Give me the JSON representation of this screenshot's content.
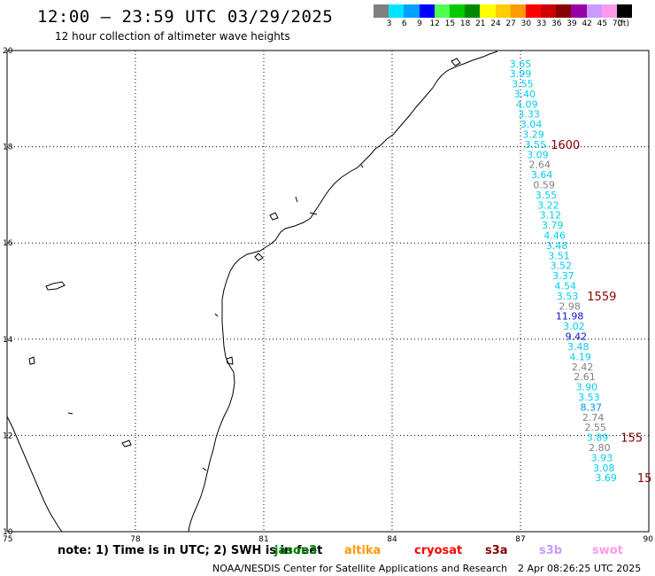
{
  "header": {
    "title": "12:00 – 23:59 UTC 03/29/2025",
    "subtitle": "12 hour collection of altimeter wave heights"
  },
  "colorbar": {
    "unit": "(ft)",
    "cells": [
      {
        "color": "#808080",
        "label": "3"
      },
      {
        "color": "#00e5ff",
        "label": "6"
      },
      {
        "color": "#00a0ff",
        "label": "9"
      },
      {
        "color": "#0000ff",
        "label": "12"
      },
      {
        "color": "#50ff50",
        "label": "15"
      },
      {
        "color": "#00cc00",
        "label": "18"
      },
      {
        "color": "#008800",
        "label": "21"
      },
      {
        "color": "#ffff00",
        "label": "24"
      },
      {
        "color": "#ffcc00",
        "label": "27"
      },
      {
        "color": "#ff9900",
        "label": "30"
      },
      {
        "color": "#ff0000",
        "label": "33"
      },
      {
        "color": "#cc0000",
        "label": "36"
      },
      {
        "color": "#880000",
        "label": "39"
      },
      {
        "color": "#9900aa",
        "label": "42"
      },
      {
        "color": "#cc99ff",
        "label": "45"
      },
      {
        "color": "#ff99ee",
        "label": "70"
      },
      {
        "color": "#000000",
        "label": ""
      }
    ]
  },
  "axes": {
    "lon_labels": [
      "75",
      "78",
      "81",
      "84",
      "87",
      "90"
    ],
    "lat_labels": [
      "20",
      "18",
      "16",
      "14",
      "12",
      "10"
    ]
  },
  "measurements": [
    {
      "value": "3.65",
      "lon": 87.0,
      "lat": 19.72,
      "color": "#00ccee"
    },
    {
      "value": "3.99",
      "lon": 87.0,
      "lat": 19.52,
      "color": "#00ccee"
    },
    {
      "value": "3.55",
      "lon": 87.05,
      "lat": 19.31,
      "color": "#00ccee"
    },
    {
      "value": "3.40",
      "lon": 87.1,
      "lat": 19.1,
      "color": "#00ccee"
    },
    {
      "value": "4.09",
      "lon": 87.15,
      "lat": 18.89,
      "color": "#00ccee"
    },
    {
      "value": "3.33",
      "lon": 87.2,
      "lat": 18.68,
      "color": "#00ccee"
    },
    {
      "value": "3.04",
      "lon": 87.25,
      "lat": 18.47,
      "color": "#00ccee"
    },
    {
      "value": "3.29",
      "lon": 87.3,
      "lat": 18.26,
      "color": "#00ccee"
    },
    {
      "value": "3.55",
      "lon": 87.35,
      "lat": 18.05,
      "color": "#00ccee"
    },
    {
      "value": "3.09",
      "lon": 87.4,
      "lat": 17.84,
      "color": "#00ccee"
    },
    {
      "value": "2.64",
      "lon": 87.45,
      "lat": 17.63,
      "color": "#808080"
    },
    {
      "value": "3.64",
      "lon": 87.5,
      "lat": 17.42,
      "color": "#00ccee"
    },
    {
      "value": "0.59",
      "lon": 87.55,
      "lat": 17.21,
      "color": "#808080"
    },
    {
      "value": "3.55",
      "lon": 87.6,
      "lat": 17.0,
      "color": "#00ccee"
    },
    {
      "value": "3.22",
      "lon": 87.65,
      "lat": 16.79,
      "color": "#00ccee"
    },
    {
      "value": "3.12",
      "lon": 87.7,
      "lat": 16.58,
      "color": "#00ccee"
    },
    {
      "value": "3.79",
      "lon": 87.75,
      "lat": 16.37,
      "color": "#00ccee"
    },
    {
      "value": "4.46",
      "lon": 87.8,
      "lat": 16.16,
      "color": "#00ccee"
    },
    {
      "value": "3.48",
      "lon": 87.85,
      "lat": 15.95,
      "color": "#00ccee"
    },
    {
      "value": "3.51",
      "lon": 87.9,
      "lat": 15.74,
      "color": "#00ccee"
    },
    {
      "value": "3.52",
      "lon": 87.95,
      "lat": 15.53,
      "color": "#00ccee"
    },
    {
      "value": "3.37",
      "lon": 88.0,
      "lat": 15.32,
      "color": "#00ccee"
    },
    {
      "value": "4.54",
      "lon": 88.05,
      "lat": 15.11,
      "color": "#00ccee"
    },
    {
      "value": "3.53",
      "lon": 88.1,
      "lat": 14.9,
      "color": "#00ccee"
    },
    {
      "value": "2.98",
      "lon": 88.15,
      "lat": 14.69,
      "color": "#808080"
    },
    {
      "value": "11.98",
      "lon": 88.15,
      "lat": 14.48,
      "color": "#1010cc"
    },
    {
      "value": "3.02",
      "lon": 88.25,
      "lat": 14.27,
      "color": "#00ccee"
    },
    {
      "value": "9.42",
      "lon": 88.3,
      "lat": 14.06,
      "color": "#1010cc"
    },
    {
      "value": "3.48",
      "lon": 88.35,
      "lat": 13.85,
      "color": "#00ccee"
    },
    {
      "value": "4.19",
      "lon": 88.4,
      "lat": 13.64,
      "color": "#00ccee"
    },
    {
      "value": "2.42",
      "lon": 88.45,
      "lat": 13.43,
      "color": "#808080"
    },
    {
      "value": "2.61",
      "lon": 88.5,
      "lat": 13.22,
      "color": "#808080"
    },
    {
      "value": "3.90",
      "lon": 88.55,
      "lat": 13.01,
      "color": "#00ccee"
    },
    {
      "value": "3.53",
      "lon": 88.6,
      "lat": 12.8,
      "color": "#00ccee"
    },
    {
      "value": "8.37",
      "lon": 88.65,
      "lat": 12.59,
      "color": "#0090ff"
    },
    {
      "value": "2.74",
      "lon": 88.7,
      "lat": 12.38,
      "color": "#808080"
    },
    {
      "value": "2.55",
      "lon": 88.75,
      "lat": 12.17,
      "color": "#808080"
    },
    {
      "value": "3.89",
      "lon": 88.8,
      "lat": 11.96,
      "color": "#00ccee"
    },
    {
      "value": "2.80",
      "lon": 88.85,
      "lat": 11.75,
      "color": "#808080"
    },
    {
      "value": "3.93",
      "lon": 88.9,
      "lat": 11.54,
      "color": "#00ccee"
    },
    {
      "value": "3.08",
      "lon": 88.95,
      "lat": 11.33,
      "color": "#00ccee"
    },
    {
      "value": "3.69",
      "lon": 89.0,
      "lat": 11.12,
      "color": "#00ccee"
    }
  ],
  "time_labels": [
    {
      "value": "1600",
      "lon": 88.05,
      "lat": 18.05,
      "color": "#880000"
    },
    {
      "value": "1559",
      "lon": 88.9,
      "lat": 14.9,
      "color": "#880000"
    },
    {
      "value": "155",
      "lon": 89.6,
      "lat": 11.96,
      "color": "#880000"
    },
    {
      "value": "15",
      "lon": 89.9,
      "lat": 11.12,
      "color": "#880000"
    }
  ],
  "footer": {
    "note": "note:  1) Time is in UTC;  2) SWH is in feet",
    "satellites": [
      {
        "name": "jason3",
        "color": "#008800"
      },
      {
        "name": "altika",
        "color": "#ff9900"
      },
      {
        "name": "cryosat",
        "color": "#ff0000"
      },
      {
        "name": "s3a",
        "color": "#880000"
      },
      {
        "name": "s3b",
        "color": "#cc99ff"
      },
      {
        "name": "swot",
        "color": "#ff99ee"
      }
    ],
    "credit": "NOAA/NESDIS Center for Satellite Applications and Research",
    "timestamp": "2 Apr 08:26:25 UTC 2025"
  }
}
